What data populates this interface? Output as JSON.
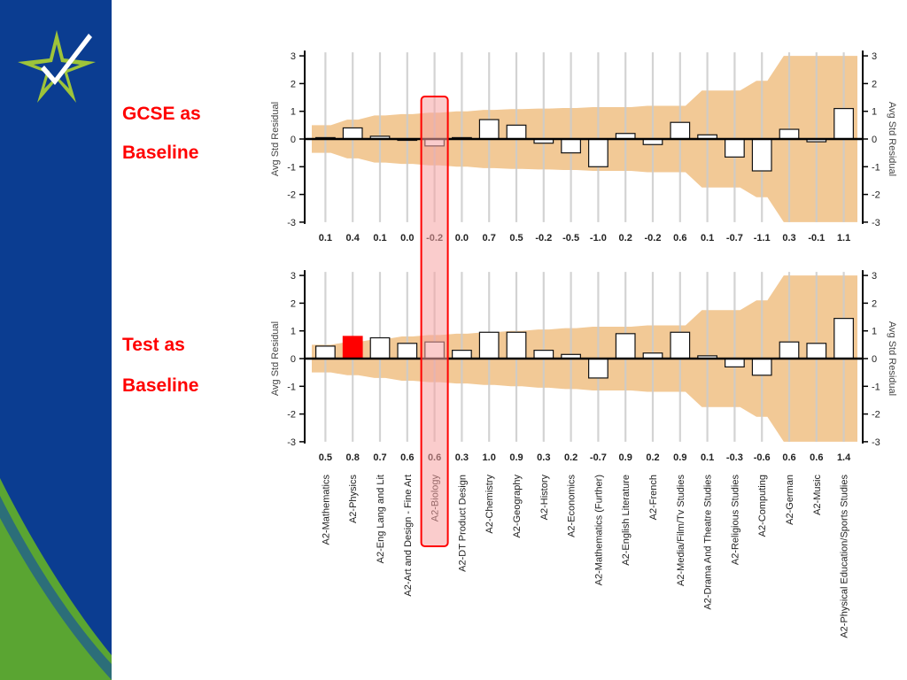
{
  "slide": {
    "label_gcse_line1": "GCSE as",
    "label_gcse_line2": "Baseline",
    "label_test_line1": "Test as",
    "label_test_line2": "Baseline"
  },
  "colors": {
    "sidebar_blue": "#0b3d91",
    "sidebar_green": "#5aa532",
    "band_fill": "#f2c996",
    "highlight_red": "#ff0000",
    "highlight_fill": "#f5a3a3",
    "label_red": "#ff0000"
  },
  "icons": {
    "logo": "star-check-logo-icon"
  },
  "chart_data": [
    {
      "type": "bar",
      "caption": "GCSE as Baseline",
      "ylabel": "Avg Std Residual",
      "ylabel_right": "Avg Std Residual",
      "ylim": [
        -3,
        3
      ],
      "yticks": [
        "3",
        "2",
        "1",
        "0",
        "-1",
        "-2",
        "-3"
      ],
      "categories": [
        "A2-Mathematics",
        "A2-Physics",
        "A2-Eng Lang and Lit",
        "A2-Art and Design - Fine Art",
        "A2-Biology",
        "A2-DT Product Design",
        "A2-Chemistry",
        "A2-Geography",
        "A2-History",
        "A2-Economics",
        "A2-Mathematics (Further)",
        "A2-English Literature",
        "A2-French",
        "A2-Media/Film/Tv Studies",
        "A2-Drama And Theatre Studies",
        "A2-Religious Studies",
        "A2-Computing",
        "A2-German",
        "A2-Music",
        "A2-Physical Education/Sports Studies"
      ],
      "values": [
        0.05,
        0.4,
        0.1,
        0.0,
        -0.25,
        0.05,
        0.7,
        0.5,
        -0.15,
        -0.5,
        -1.0,
        0.2,
        -0.2,
        0.6,
        0.15,
        -0.65,
        -1.15,
        0.35,
        -0.1,
        1.1
      ],
      "value_labels": [
        "0.1",
        "0.4",
        "0.1",
        "0.0",
        "-0.2",
        "0.0",
        "0.7",
        "0.5",
        "-0.2",
        "-0.5",
        "-1.0",
        "0.2",
        "-0.2",
        "0.6",
        "0.1",
        "-0.7",
        "-1.1",
        "0.3",
        "-0.1",
        "1.1"
      ],
      "band_upper": [
        0.5,
        0.7,
        0.85,
        0.9,
        0.95,
        1.0,
        1.05,
        1.08,
        1.1,
        1.12,
        1.15,
        1.15,
        1.2,
        1.2,
        1.75,
        1.75,
        2.1,
        3.0,
        3.0,
        3.0
      ],
      "highlight_index": 4,
      "highlight_filled_index": null,
      "grid": true
    },
    {
      "type": "bar",
      "caption": "Test as Baseline",
      "ylabel": "Avg Std Residual",
      "ylabel_right": "Avg Std Residual",
      "ylim": [
        -3,
        3
      ],
      "yticks": [
        "3",
        "2",
        "1",
        "0",
        "-1",
        "-2",
        "-3"
      ],
      "categories": [
        "A2-Mathematics",
        "A2-Physics",
        "A2-Eng Lang and Lit",
        "A2-Art and Design - Fine Art",
        "A2-Biology",
        "A2-DT Product Design",
        "A2-Chemistry",
        "A2-Geography",
        "A2-History",
        "A2-Economics",
        "A2-Mathematics (Further)",
        "A2-English Literature",
        "A2-French",
        "A2-Media/Film/Tv Studies",
        "A2-Drama And Theatre Studies",
        "A2-Religious Studies",
        "A2-Computing",
        "A2-German",
        "A2-Music",
        "A2-Physical Education/Sports Studies"
      ],
      "values": [
        0.45,
        0.8,
        0.75,
        0.55,
        0.6,
        0.3,
        0.95,
        0.95,
        0.3,
        0.15,
        -0.7,
        0.9,
        0.2,
        0.95,
        0.1,
        -0.3,
        -0.6,
        0.6,
        0.55,
        1.45
      ],
      "value_labels": [
        "0.5",
        "0.8",
        "0.7",
        "0.6",
        "0.6",
        "0.3",
        "1.0",
        "0.9",
        "0.3",
        "0.2",
        "-0.7",
        "0.9",
        "0.2",
        "0.9",
        "0.1",
        "-0.3",
        "-0.6",
        "0.6",
        "0.6",
        "1.4"
      ],
      "band_upper": [
        0.5,
        0.6,
        0.7,
        0.8,
        0.85,
        0.9,
        0.95,
        1.0,
        1.05,
        1.1,
        1.15,
        1.15,
        1.2,
        1.2,
        1.75,
        1.75,
        2.1,
        3.0,
        3.0,
        3.0
      ],
      "highlight_index": 4,
      "highlight_filled_index": 1,
      "grid": true
    }
  ]
}
